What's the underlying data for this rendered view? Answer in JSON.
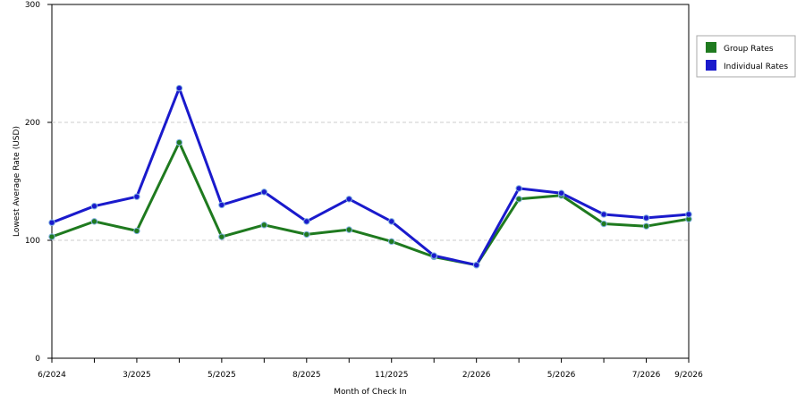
{
  "chart_data": {
    "type": "line",
    "xlabel": "Month of Check In",
    "ylabel": "Lowest Average Rate (USD)",
    "ylim": [
      0,
      300
    ],
    "yticks": [
      0,
      100,
      200,
      300
    ],
    "grid": "horizontal dashed",
    "legend_position": "top-right",
    "categories": [
      "6/2024",
      "",
      "3/2025",
      "",
      "5/2025",
      "",
      "8/2025",
      "",
      "11/2025",
      "",
      "2/2026",
      "",
      "5/2026",
      "",
      "7/2026",
      "9/2026"
    ],
    "series": [
      {
        "name": "Group Rates",
        "color": "#1f7a1f",
        "values": [
          103,
          116,
          108,
          183,
          103,
          113,
          105,
          109,
          99,
          86,
          79,
          135,
          138,
          114,
          112,
          118
        ]
      },
      {
        "name": "Individual Rates",
        "color": "#1a1acc",
        "values": [
          115,
          129,
          137,
          229,
          130,
          141,
          116,
          135,
          116,
          87,
          79,
          144,
          140,
          122,
          119,
          122
        ]
      }
    ]
  }
}
